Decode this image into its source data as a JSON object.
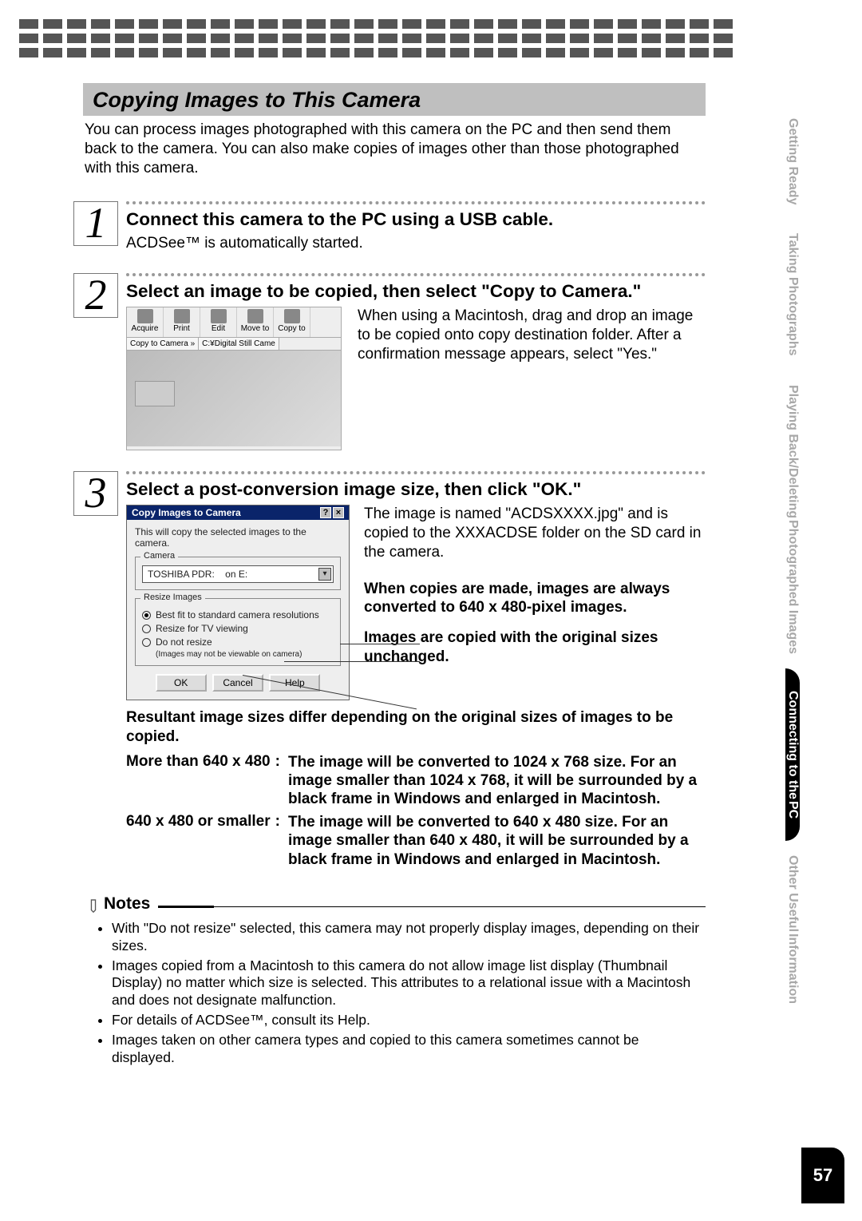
{
  "checker": {
    "rows": 3,
    "cols": 30,
    "color": "#555555"
  },
  "title": "Copying Images to This Camera",
  "intro": "You can process images photographed with this camera on the PC and then send them back to the camera. You can also make copies of images other than those photographed with this camera.",
  "step1": {
    "num": "1",
    "heading": "Connect this camera to the PC using a USB cable.",
    "sub": "ACDSee™ is automatically started.",
    "dot_color": "#999999"
  },
  "step2": {
    "num": "2",
    "heading": "Select an image to be copied, then select \"Copy to Camera.\"",
    "toolbar": [
      "Acquire",
      "Print",
      "Edit",
      "Move to",
      "Copy to"
    ],
    "copybar_left": "Copy to Camera »",
    "copybar_right": "C:¥Digital Still Came",
    "mac_note": "When using a Macintosh, drag and drop an image to be copied onto copy destination folder. After a confirmation message appears, select \"Yes.\""
  },
  "step3": {
    "num": "3",
    "heading": "Select a post-conversion image size, then click \"OK.\"",
    "dialog": {
      "title": "Copy Images to Camera",
      "msg": "This will copy the selected images to the camera.",
      "camera_legend": "Camera",
      "combo_left": "TOSHIBA PDR:",
      "combo_right": "on E:",
      "resize_legend": "Resize Images",
      "r1": "Best fit to standard camera resolutions",
      "r2": "Resize for TV viewing",
      "r3": "Do not resize",
      "r3_hint": "(Images may not be viewable on camera)",
      "ok": "OK",
      "cancel": "Cancel",
      "help": "Help"
    },
    "right_para": "The image is named \"ACDSXXXX.jpg\" and is copied to the XXXACDSE folder on the SD card in the camera.",
    "bold1": "When copies are made, images are always converted to 640 x 480-pixel images.",
    "bold2": "Images are copied with the original sizes unchanged.",
    "result": "Resultant image sizes differ depending on the original sizes of images to be copied.",
    "rows": [
      {
        "label": "More than 640 x 480",
        "desc": "The image will be converted to 1024 x 768 size. For an image smaller than 1024 x 768, it will be surrounded by a black frame in Windows and enlarged in Macintosh."
      },
      {
        "label": "640 x 480 or smaller",
        "desc": "The image will be converted to 640 x 480 size. For an image smaller than 640 x 480, it will be surrounded by a black frame in Windows and enlarged in Macintosh."
      }
    ]
  },
  "notes_title": "Notes",
  "notes": [
    "With \"Do not resize\" selected, this camera may not properly display images, depending on their sizes.",
    "Images copied from a Macintosh to this camera do not allow image list display (Thumbnail Display) no matter which size is selected. This attributes to a relational issue with a Macintosh and does not designate malfunction.",
    "For details of ACDSee™, consult its Help.",
    "Images taken on other camera types and copied to this camera sometimes cannot be displayed."
  ],
  "side_tabs": [
    {
      "label": "Getting Ready",
      "active": false
    },
    {
      "label": "Taking Photographs",
      "active": false
    },
    {
      "labels": [
        "Playing Back/Deleting",
        "Photographed Images"
      ],
      "active": false
    },
    {
      "labels": [
        "Connecting to the",
        "PC"
      ],
      "active": true
    },
    {
      "labels": [
        "Other Useful",
        "Information"
      ],
      "active": false
    }
  ],
  "page_number": "57",
  "colors": {
    "title_band": "#bfbfbf",
    "active_tab_bg": "#000000",
    "active_tab_fg": "#ffffff",
    "inactive_tab_fg": "#a8a8a8",
    "dialog_title_bg": "#0a246a"
  }
}
